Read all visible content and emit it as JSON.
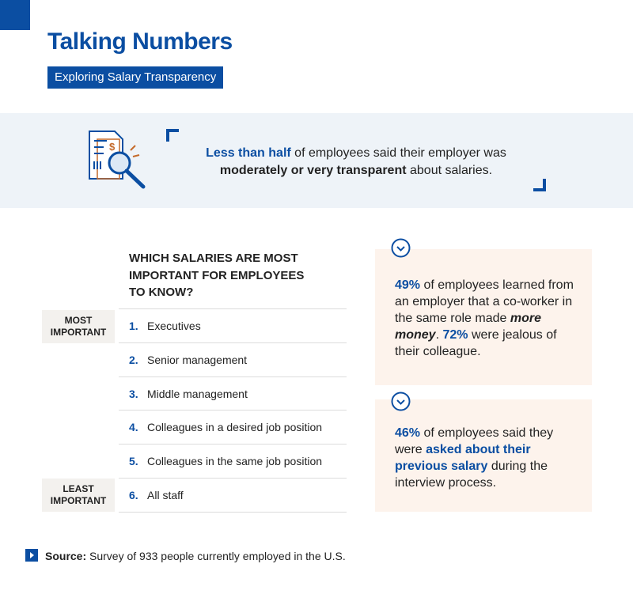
{
  "header": {
    "title": "Talking Numbers",
    "subtitle": "Exploring Salary Transparency"
  },
  "callout": {
    "segments": [
      "Less than half",
      " of employees said their employer was ",
      "moderately or very transparent",
      " about salaries."
    ]
  },
  "ranking": {
    "heading": "WHICH SALARIES ARE MOST IMPORTANT FOR EMPLOYEES TO KNOW?",
    "top_label": "MOST IMPORTANT",
    "bottom_label": "LEAST IMPORTANT",
    "items": [
      {
        "rank": "1.",
        "label": "Executives"
      },
      {
        "rank": "2.",
        "label": "Senior management"
      },
      {
        "rank": "3.",
        "label": "Middle management"
      },
      {
        "rank": "4.",
        "label": "Colleagues in a desired job position"
      },
      {
        "rank": "5.",
        "label": "Colleagues in the same job position"
      },
      {
        "rank": "6.",
        "label": "All staff"
      }
    ]
  },
  "facts": [
    {
      "segments": [
        "49%",
        " of employees learned from an employer that a co-worker in the same role made ",
        "more money",
        ". ",
        "72%",
        " were jealous of their colleague."
      ]
    },
    {
      "segments": [
        "46%",
        " of employees said they were ",
        "asked about their previous salary",
        " during the interview process."
      ]
    }
  ],
  "source": {
    "label": "Source:",
    "text": " Survey of 933 people currently employed in the U.S."
  }
}
